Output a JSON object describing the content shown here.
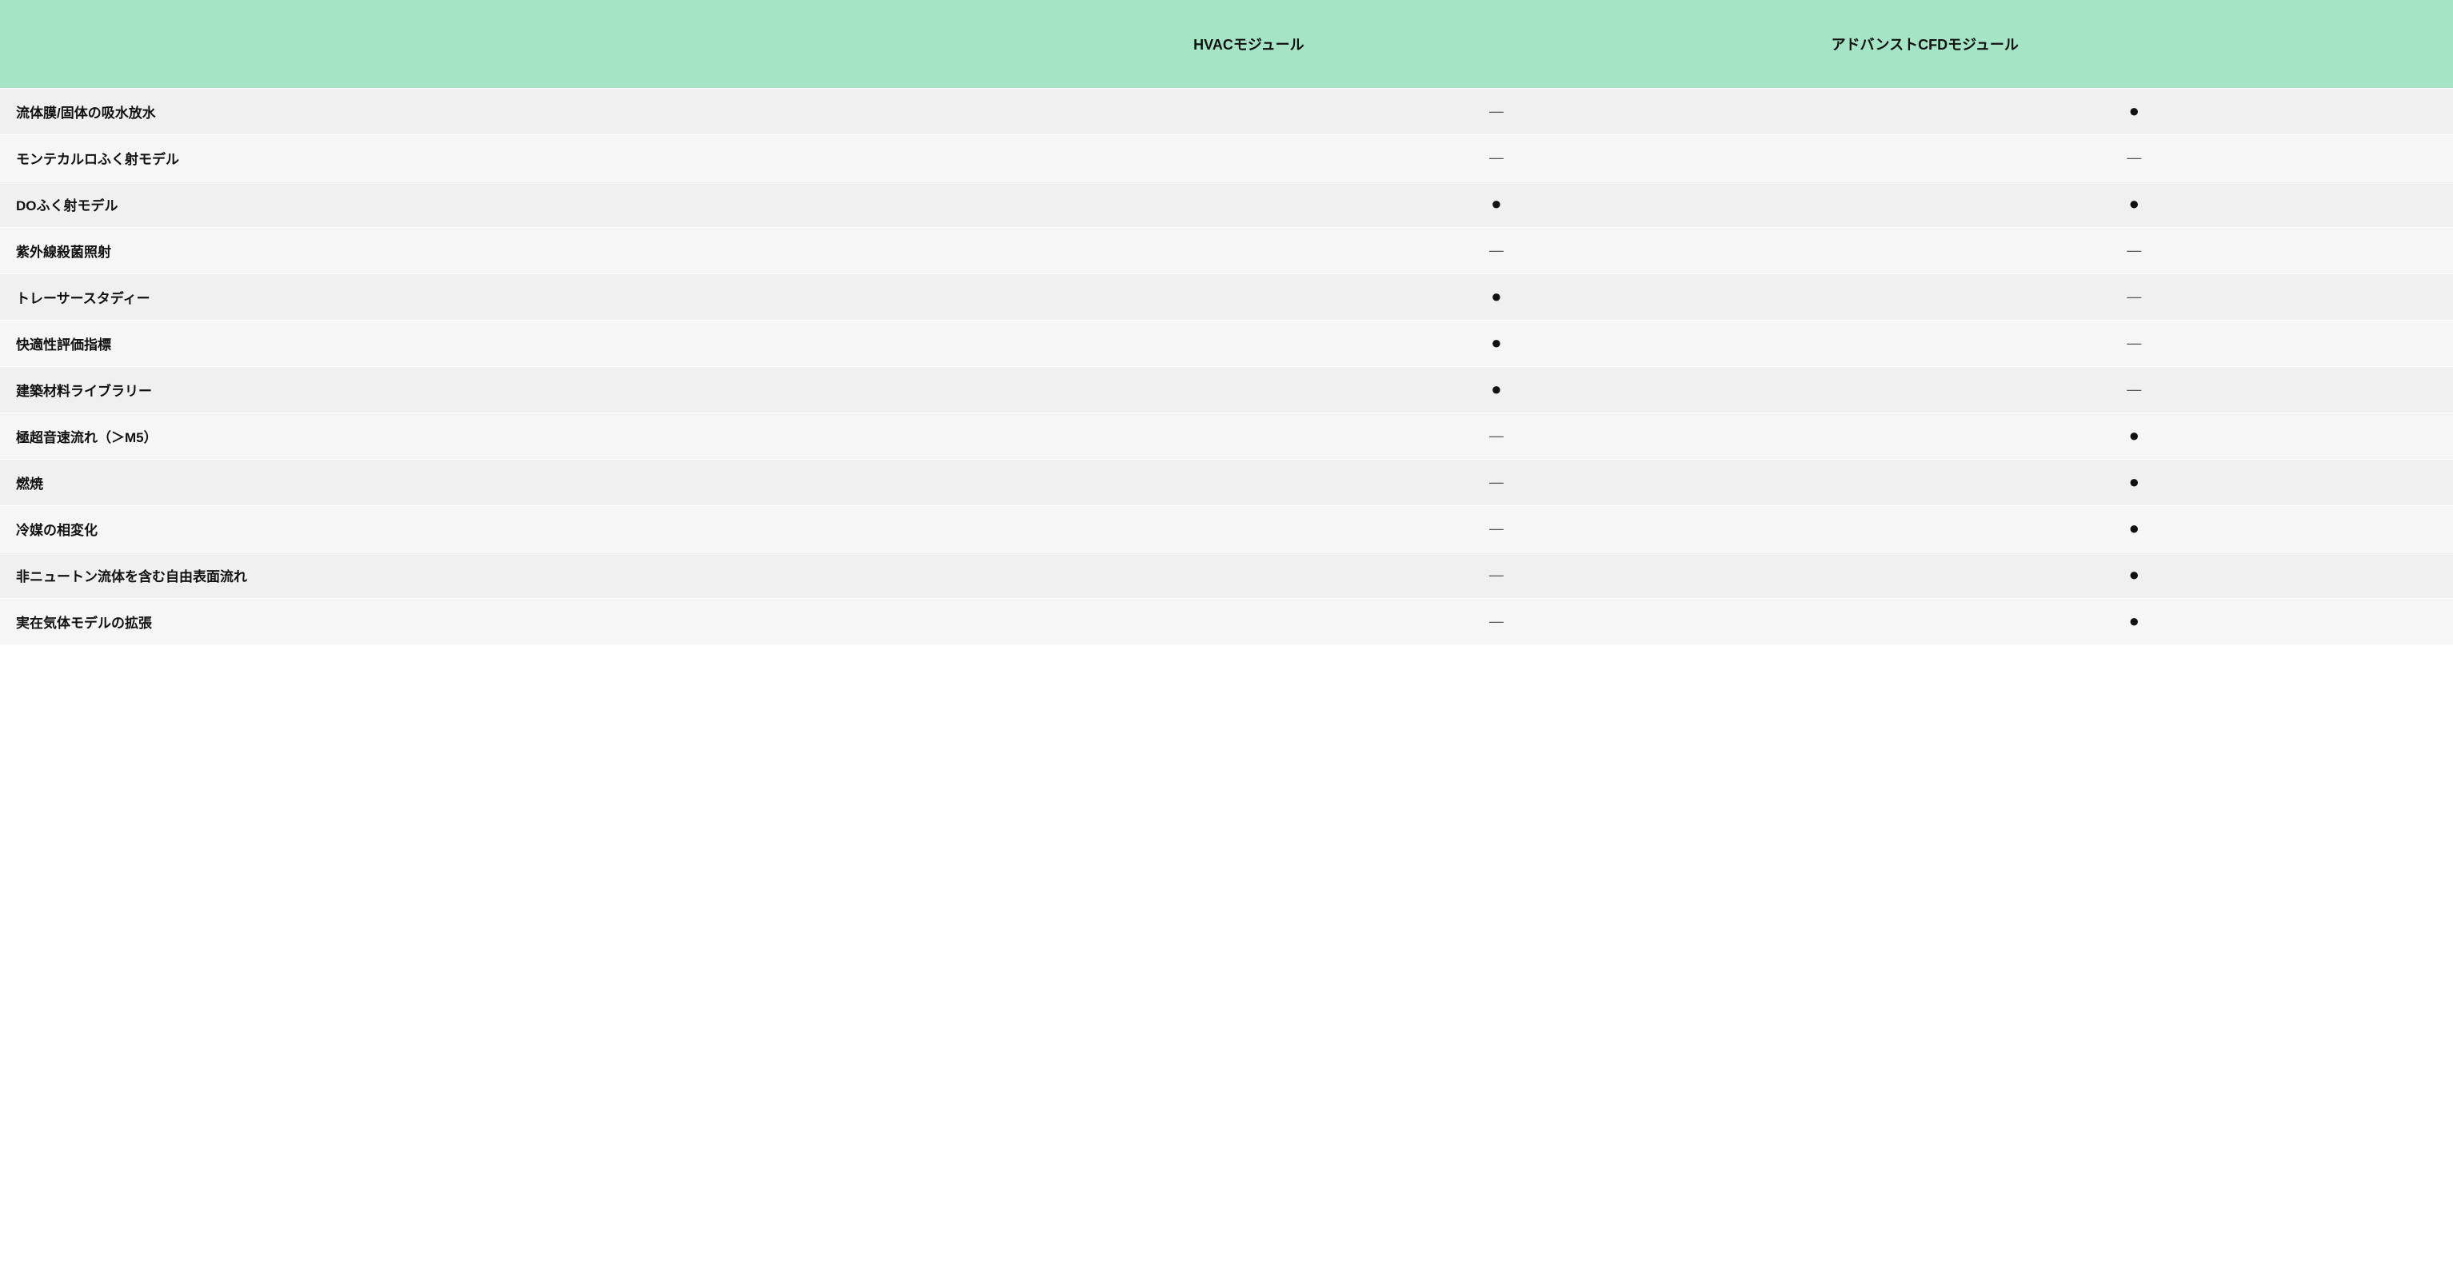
{
  "table": {
    "type": "table",
    "header_bg": "#a6e4c6",
    "row_bg_odd": "#f0f0f0",
    "row_bg_even": "#f6f6f6",
    "border_color": "#ffffff",
    "text_color": "#111111",
    "muted_color": "#555555",
    "yes_glyph": "●",
    "no_glyph": "—",
    "columns": [
      {
        "key": "feature",
        "label": "",
        "align": "left"
      },
      {
        "key": "hvac",
        "label": "HVACモジュール",
        "align": "center"
      },
      {
        "key": "cfd",
        "label": "アドバンストCFDモジュール",
        "align": "center"
      }
    ],
    "rows": [
      {
        "feature": "流体膜/固体の吸水放水",
        "hvac": false,
        "cfd": true
      },
      {
        "feature": "モンテカルロふく射モデル",
        "hvac": false,
        "cfd": false
      },
      {
        "feature": "DOふく射モデル",
        "hvac": true,
        "cfd": true
      },
      {
        "feature": "紫外線殺菌照射",
        "hvac": false,
        "cfd": false
      },
      {
        "feature": "トレーサースタディー",
        "hvac": true,
        "cfd": false
      },
      {
        "feature": "快適性評価指標",
        "hvac": true,
        "cfd": false
      },
      {
        "feature": "建築材料ライブラリー",
        "hvac": true,
        "cfd": false
      },
      {
        "feature": "極超音速流れ（＞M5）",
        "hvac": false,
        "cfd": true
      },
      {
        "feature": "燃焼",
        "hvac": false,
        "cfd": true
      },
      {
        "feature": "冷媒の相変化",
        "hvac": false,
        "cfd": true
      },
      {
        "feature": "非ニュートン流体を含む自由表面流れ",
        "hvac": false,
        "cfd": true
      },
      {
        "feature": "実在気体モデルの拡張",
        "hvac": false,
        "cfd": true
      }
    ]
  }
}
